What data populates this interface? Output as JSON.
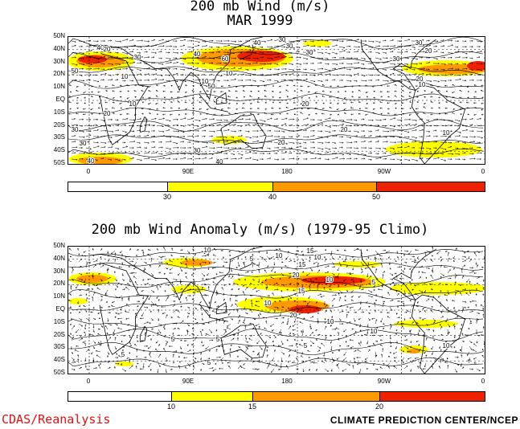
{
  "panels": [
    {
      "title_lines": [
        "200 mb Wind (m/s)",
        "MAR 1999"
      ],
      "lat_labels": [
        "50N",
        "40N",
        "30N",
        "20N",
        "10N",
        "EQ",
        "10S",
        "20S",
        "30S",
        "40S",
        "50S"
      ],
      "lon_labels": [
        "0",
        "90E",
        "180",
        "90W",
        "0"
      ],
      "colorbar": {
        "colors": [
          "#ffffff",
          "#ffff00",
          "#ff9900",
          "#ee2200"
        ],
        "thresholds": [
          "30",
          "40",
          "50"
        ]
      },
      "contour_labels": [
        "50",
        "40",
        "30",
        "20",
        "10",
        "40",
        "60",
        "40",
        "50",
        "30",
        "10",
        "10",
        "20",
        "30",
        "20",
        "30",
        "20",
        "10",
        "20",
        "30",
        "30",
        "40",
        "10",
        "30",
        "20",
        "10",
        "20",
        "30",
        "40",
        "30"
      ]
    },
    {
      "title_lines": [
        "200 mb Wind Anomaly (m/s) (1979-95 Climo)"
      ],
      "lat_labels": [
        "50N",
        "40N",
        "30N",
        "20N",
        "10N",
        "EQ",
        "10S",
        "20S",
        "30S",
        "40S",
        "50S"
      ],
      "lon_labels": [
        "0",
        "90E",
        "180",
        "90W",
        "0"
      ],
      "colorbar": {
        "colors": [
          "#ffffff",
          "#ffff00",
          "#ff9900",
          "#ee2200"
        ],
        "thresholds": [
          "10",
          "15",
          "20"
        ]
      },
      "contour_labels": [
        "10",
        "5",
        "10",
        "15",
        "10",
        "15",
        "20",
        "15",
        "10",
        "20",
        "10",
        "5",
        "10",
        "10",
        "5",
        "5",
        "5",
        "5",
        "10",
        "5"
      ]
    }
  ],
  "footer": {
    "left": "CDAS/Reanalysis",
    "right": "CLIMATE PREDICTION CENTER/NCEP"
  }
}
